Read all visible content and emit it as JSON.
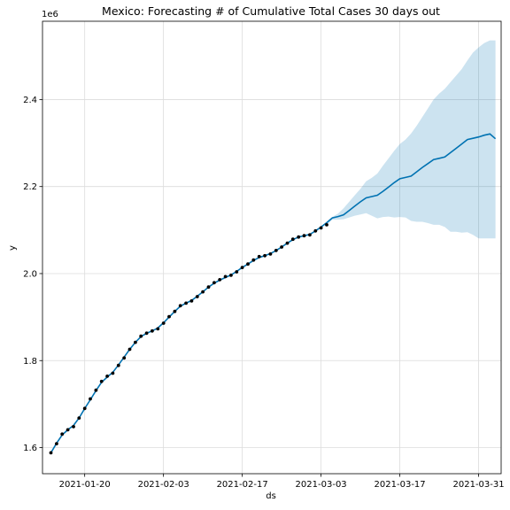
{
  "chart_data": {
    "type": "line",
    "title": "Mexico: Forecasting # of Cumulative Total Cases 30 days out",
    "xlabel": "ds",
    "ylabel": "y",
    "y_scale_label": "1e6",
    "x_start": "2021-01-14",
    "xlim": [
      -1.5,
      80
    ],
    "ylim": [
      1.54,
      2.58
    ],
    "x_ticks": [
      {
        "label": "2021-01-20",
        "value": 6
      },
      {
        "label": "2021-02-03",
        "value": 20
      },
      {
        "label": "2021-02-17",
        "value": 34
      },
      {
        "label": "2021-03-03",
        "value": 48
      },
      {
        "label": "2021-03-17",
        "value": 62
      },
      {
        "label": "2021-03-31",
        "value": 76
      }
    ],
    "y_ticks": [
      {
        "label": "1.6",
        "value": 1.6
      },
      {
        "label": "1.8",
        "value": 1.8
      },
      {
        "label": "2.0",
        "value": 2.0
      },
      {
        "label": "2.2",
        "value": 2.2
      },
      {
        "label": "2.4",
        "value": 2.4
      }
    ],
    "grid": true,
    "series": [
      {
        "role": "actual",
        "color": "#000000",
        "x": [
          0,
          1,
          2,
          3,
          4,
          5,
          6,
          7,
          8,
          9,
          10,
          11,
          12,
          13,
          14,
          15,
          16,
          17,
          18,
          19,
          20,
          21,
          22,
          23,
          24,
          25,
          26,
          27,
          28,
          29,
          30,
          31,
          32,
          33,
          34,
          35,
          36,
          37,
          38,
          39,
          40,
          41,
          42,
          43,
          44,
          45,
          46,
          47,
          48,
          49
        ],
        "values": [
          1.588,
          1.609,
          1.631,
          1.641,
          1.648,
          1.668,
          1.69,
          1.712,
          1.732,
          1.752,
          1.764,
          1.771,
          1.789,
          1.806,
          1.826,
          1.842,
          1.856,
          1.863,
          1.868,
          1.873,
          1.886,
          1.901,
          1.913,
          1.926,
          1.932,
          1.937,
          1.947,
          1.958,
          1.969,
          1.979,
          1.986,
          1.993,
          1.996,
          2.004,
          2.014,
          2.022,
          2.031,
          2.039,
          2.041,
          2.045,
          2.053,
          2.061,
          2.07,
          2.079,
          2.084,
          2.087,
          2.089,
          2.098,
          2.105,
          2.112
        ]
      },
      {
        "role": "forecast",
        "color": "#0072b2",
        "x": [
          0,
          1,
          2,
          3,
          4,
          5,
          6,
          7,
          8,
          9,
          10,
          11,
          12,
          13,
          14,
          15,
          16,
          17,
          18,
          19,
          20,
          21,
          22,
          23,
          24,
          25,
          26,
          27,
          28,
          29,
          30,
          31,
          32,
          33,
          34,
          35,
          36,
          37,
          38,
          39,
          40,
          41,
          42,
          43,
          44,
          45,
          46,
          47,
          48,
          49,
          50,
          51,
          52,
          53,
          54,
          55,
          56,
          57,
          58,
          59,
          60,
          61,
          62,
          63,
          64,
          65,
          66,
          67,
          68,
          69,
          70,
          71,
          72,
          73,
          74,
          75,
          76,
          77,
          78,
          79
        ],
        "values": [
          1.588,
          1.61,
          1.629,
          1.641,
          1.651,
          1.668,
          1.69,
          1.71,
          1.731,
          1.75,
          1.762,
          1.773,
          1.79,
          1.808,
          1.826,
          1.842,
          1.855,
          1.863,
          1.868,
          1.875,
          1.887,
          1.9,
          1.913,
          1.925,
          1.932,
          1.938,
          1.948,
          1.958,
          1.969,
          1.978,
          1.985,
          1.991,
          1.997,
          2.005,
          2.014,
          2.022,
          2.03,
          2.037,
          2.041,
          2.046,
          2.053,
          2.061,
          2.07,
          2.078,
          2.084,
          2.087,
          2.09,
          2.098,
          2.107,
          2.117,
          2.128,
          2.131,
          2.135,
          2.145,
          2.155,
          2.165,
          2.174,
          2.177,
          2.18,
          2.189,
          2.199,
          2.209,
          2.218,
          2.221,
          2.224,
          2.234,
          2.244,
          2.253,
          2.262,
          2.265,
          2.268,
          2.278,
          2.288,
          2.298,
          2.308,
          2.311,
          2.314,
          2.318,
          2.321,
          2.31
        ]
      }
    ],
    "uncertainty_band": {
      "color": "#0072b2",
      "x": [
        49,
        50,
        51,
        52,
        53,
        54,
        55,
        56,
        57,
        58,
        59,
        60,
        61,
        62,
        63,
        64,
        65,
        66,
        67,
        68,
        69,
        70,
        71,
        72,
        73,
        74,
        75,
        76,
        77,
        78,
        79
      ],
      "lower": [
        2.112,
        2.124,
        2.124,
        2.125,
        2.129,
        2.133,
        2.136,
        2.139,
        2.133,
        2.127,
        2.13,
        2.131,
        2.129,
        2.13,
        2.129,
        2.121,
        2.119,
        2.119,
        2.116,
        2.112,
        2.112,
        2.107,
        2.096,
        2.096,
        2.094,
        2.095,
        2.089,
        2.081,
        2.081,
        2.081,
        2.081
      ],
      "upper": [
        2.114,
        2.13,
        2.138,
        2.15,
        2.165,
        2.18,
        2.195,
        2.212,
        2.22,
        2.23,
        2.248,
        2.265,
        2.282,
        2.298,
        2.308,
        2.322,
        2.34,
        2.36,
        2.38,
        2.4,
        2.414,
        2.425,
        2.44,
        2.455,
        2.47,
        2.49,
        2.508,
        2.52,
        2.53,
        2.536,
        2.536
      ]
    }
  }
}
